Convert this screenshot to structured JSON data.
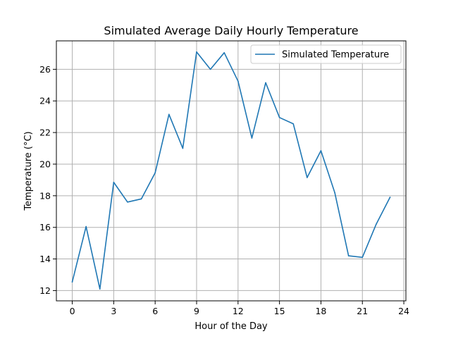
{
  "chart_data": {
    "type": "line",
    "title": "Simulated Average Daily Hourly Temperature",
    "xlabel": "Hour of the Day",
    "ylabel": "Temperature (°C)",
    "xlim": [
      -1.15,
      24.15
    ],
    "ylim": [
      11.35,
      27.8
    ],
    "xticks": [
      0,
      3,
      6,
      9,
      12,
      15,
      18,
      21,
      24
    ],
    "yticks": [
      12,
      14,
      16,
      18,
      20,
      22,
      24,
      26
    ],
    "grid": true,
    "legend": {
      "position": "upper-right"
    },
    "series": [
      {
        "name": "Simulated Temperature",
        "color": "#1f77b4",
        "x": [
          0,
          1,
          2,
          3,
          4,
          5,
          6,
          7,
          8,
          9,
          10,
          11,
          12,
          13,
          14,
          15,
          16,
          17,
          18,
          19,
          20,
          21,
          22,
          23
        ],
        "values": [
          12.55,
          16.05,
          12.1,
          18.85,
          17.6,
          17.8,
          19.45,
          23.15,
          21.0,
          27.1,
          26.0,
          27.05,
          25.25,
          21.65,
          25.15,
          22.95,
          22.55,
          19.15,
          20.85,
          18.2,
          14.2,
          14.1,
          16.2,
          17.9
        ]
      }
    ]
  }
}
